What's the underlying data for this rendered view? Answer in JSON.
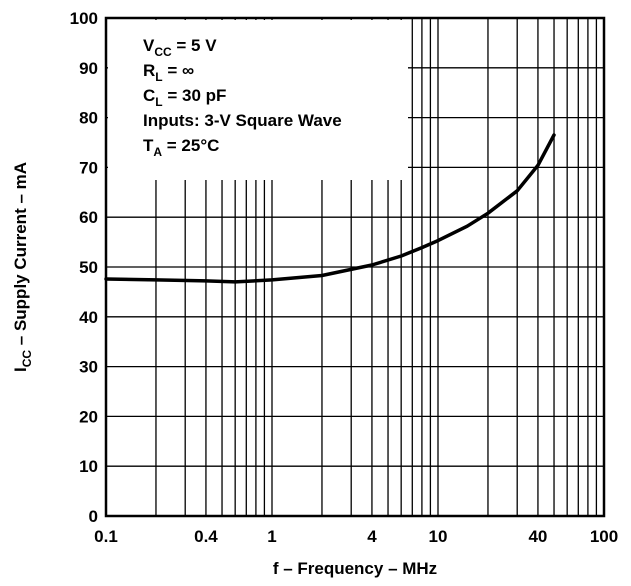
{
  "chart_data": {
    "type": "line",
    "x_scale": "log",
    "xlim": [
      0.1,
      100
    ],
    "ylim": [
      0,
      100
    ],
    "grid": true,
    "xlabel": "f – Frequency – MHz",
    "ylabel": {
      "main": "I",
      "sub": "CC",
      "rest": " – Supply Current – mA"
    },
    "x_ticks": [
      {
        "value": 0.1,
        "label": "0.1"
      },
      {
        "value": 0.4,
        "label": "0.4"
      },
      {
        "value": 1,
        "label": "1"
      },
      {
        "value": 4,
        "label": "4"
      },
      {
        "value": 10,
        "label": "10"
      },
      {
        "value": 40,
        "label": "40"
      },
      {
        "value": 100,
        "label": "100"
      }
    ],
    "y_ticks": [
      {
        "value": 0,
        "label": "0"
      },
      {
        "value": 10,
        "label": "10"
      },
      {
        "value": 20,
        "label": "20"
      },
      {
        "value": 30,
        "label": "30"
      },
      {
        "value": 40,
        "label": "40"
      },
      {
        "value": 50,
        "label": "50"
      },
      {
        "value": 60,
        "label": "60"
      },
      {
        "value": 70,
        "label": "70"
      },
      {
        "value": 80,
        "label": "80"
      },
      {
        "value": 90,
        "label": "90"
      },
      {
        "value": 100,
        "label": "100"
      }
    ],
    "series": [
      {
        "x": [
          0.1,
          0.2,
          0.4,
          0.6,
          1,
          2,
          4,
          6,
          8,
          10,
          15,
          20,
          30,
          40,
          50
        ],
        "y": [
          47.6,
          47.4,
          47.2,
          47.0,
          47.4,
          48.3,
          50.4,
          52.2,
          53.9,
          55.3,
          58.2,
          60.8,
          65.3,
          70.4,
          76.5
        ]
      }
    ],
    "annotations": [
      {
        "main": "V",
        "sub": "CC",
        "rest": " = 5 V"
      },
      {
        "main": "R",
        "sub": "L",
        "rest": " = ∞"
      },
      {
        "main": "C",
        "sub": "L",
        "rest": " = 30 pF"
      },
      {
        "main": "Inputs: 3-V Square Wave",
        "sub": "",
        "rest": ""
      },
      {
        "main": "T",
        "sub": "A",
        "rest": " = 25°C"
      }
    ]
  }
}
